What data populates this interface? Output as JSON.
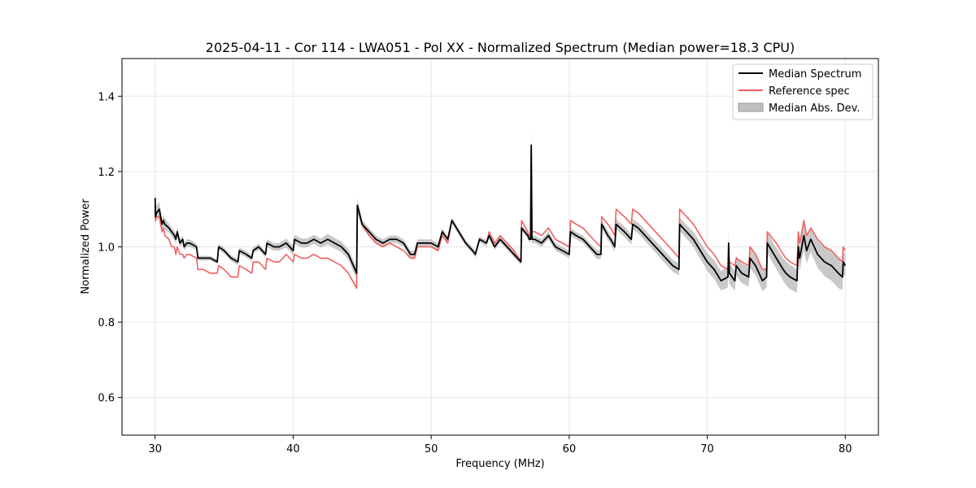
{
  "chart_data": {
    "type": "line",
    "title": "2025-04-11 - Cor 114 - LWA051 - Pol XX - Normalized Spectrum (Median power=18.3 CPU)",
    "xlabel": "Frequency (MHz)",
    "ylabel": "Normalized Power",
    "xlim": [
      27.6,
      82.4
    ],
    "ylim": [
      0.5,
      1.5
    ],
    "xticks": [
      30,
      40,
      50,
      60,
      70,
      80
    ],
    "xtick_labels": [
      "30",
      "40",
      "50",
      "60",
      "70",
      "80"
    ],
    "yticks": [
      0.6,
      0.8,
      1.0,
      1.2,
      1.4
    ],
    "ytick_labels": [
      "0.6",
      "0.8",
      "1.0",
      "1.2",
      "1.4"
    ],
    "grid": true,
    "legend_position": "top-right",
    "legend": [
      {
        "label": "Median Spectrum",
        "kind": "line",
        "color": "#000000"
      },
      {
        "label": "Reference spec",
        "kind": "line",
        "color": "#f06060"
      },
      {
        "label": "Median Abs. Dev.",
        "kind": "band",
        "color": "#bfbfbf"
      }
    ],
    "series": [
      {
        "name": "Median Spectrum",
        "color": "#000000",
        "x": [
          30.0,
          30.02,
          30.1,
          30.3,
          30.5,
          30.6,
          30.7,
          31.0,
          31.2,
          31.4,
          31.5,
          31.6,
          31.8,
          32.0,
          32.1,
          32.3,
          32.5,
          33.0,
          33.1,
          33.5,
          34.0,
          34.5,
          34.6,
          35.0,
          35.5,
          36.0,
          36.1,
          36.6,
          37.0,
          37.1,
          37.5,
          38.0,
          38.1,
          38.6,
          39.0,
          39.5,
          40.0,
          40.1,
          40.6,
          41.0,
          41.5,
          42.0,
          42.5,
          43.0,
          43.5,
          44.0,
          44.6,
          44.65,
          45.0,
          45.5,
          46.0,
          46.5,
          47.0,
          47.5,
          48.0,
          48.5,
          48.8,
          49.0,
          49.5,
          50.0,
          50.5,
          50.8,
          51.2,
          51.5,
          52.0,
          52.5,
          53.0,
          53.2,
          53.5,
          54.0,
          54.2,
          54.6,
          55.0,
          55.5,
          56.0,
          56.5,
          56.55,
          57.0,
          57.1,
          57.2,
          57.25,
          57.3,
          57.5,
          58.0,
          58.5,
          59.0,
          59.5,
          60.0,
          60.1,
          60.5,
          61.0,
          61.5,
          62.0,
          62.3,
          62.35,
          62.8,
          63.0,
          63.3,
          63.4,
          64.0,
          64.5,
          64.6,
          65.0,
          65.5,
          66.0,
          66.5,
          67.0,
          67.5,
          67.95,
          68.0,
          68.5,
          69.0,
          69.5,
          70.0,
          70.5,
          71.0,
          71.5,
          71.55,
          71.6,
          72.0,
          72.1,
          72.5,
          73.0,
          73.1,
          73.5,
          74.0,
          74.3,
          74.35,
          75.0,
          75.5,
          75.7,
          76.0,
          76.5,
          76.6,
          76.7,
          77.0,
          77.2,
          77.5,
          78.0,
          78.5,
          79.0,
          79.5,
          79.8,
          79.85,
          80.0
        ],
        "values": [
          1.13,
          1.08,
          1.09,
          1.1,
          1.06,
          1.07,
          1.06,
          1.05,
          1.04,
          1.03,
          1.02,
          1.04,
          1.01,
          1.02,
          1.0,
          1.01,
          1.01,
          1.0,
          0.97,
          0.97,
          0.97,
          0.96,
          1.0,
          0.99,
          0.97,
          0.96,
          0.99,
          0.98,
          0.97,
          0.99,
          1.0,
          0.98,
          1.01,
          1.0,
          1.0,
          1.01,
          0.99,
          1.02,
          1.01,
          1.01,
          1.02,
          1.01,
          1.02,
          1.01,
          1.0,
          0.98,
          0.93,
          1.11,
          1.06,
          1.04,
          1.02,
          1.01,
          1.02,
          1.02,
          1.01,
          0.98,
          0.98,
          1.01,
          1.01,
          1.01,
          1.0,
          1.04,
          1.02,
          1.07,
          1.04,
          1.01,
          0.99,
          0.98,
          1.02,
          1.01,
          1.03,
          1.0,
          1.02,
          1.0,
          0.98,
          0.96,
          1.05,
          1.03,
          1.02,
          1.02,
          1.27,
          1.02,
          1.02,
          1.01,
          1.03,
          1.0,
          0.99,
          0.98,
          1.04,
          1.03,
          1.02,
          1.0,
          0.98,
          0.98,
          1.06,
          1.03,
          1.02,
          1.0,
          1.06,
          1.04,
          1.02,
          1.06,
          1.05,
          1.03,
          1.01,
          0.99,
          0.97,
          0.95,
          0.94,
          1.06,
          1.04,
          1.02,
          0.99,
          0.96,
          0.94,
          0.91,
          0.92,
          1.01,
          0.93,
          0.91,
          0.95,
          0.93,
          0.92,
          0.97,
          0.95,
          0.91,
          0.92,
          1.01,
          0.97,
          0.94,
          0.93,
          0.92,
          0.91,
          1.0,
          0.97,
          1.03,
          0.99,
          1.02,
          0.98,
          0.96,
          0.95,
          0.93,
          0.92,
          0.96,
          0.95
        ]
      },
      {
        "name": "Reference spec",
        "color": "#f06060",
        "x": [
          30.0,
          30.02,
          30.1,
          30.3,
          30.5,
          30.6,
          30.7,
          31.0,
          31.2,
          31.4,
          31.5,
          31.6,
          31.8,
          32.0,
          32.1,
          32.3,
          32.5,
          33.0,
          33.1,
          33.5,
          34.0,
          34.5,
          34.6,
          35.0,
          35.5,
          36.0,
          36.1,
          36.6,
          37.0,
          37.1,
          37.5,
          38.0,
          38.1,
          38.6,
          39.0,
          39.5,
          40.0,
          40.1,
          40.6,
          41.0,
          41.5,
          42.0,
          42.5,
          43.0,
          43.5,
          44.0,
          44.6,
          44.65,
          45.0,
          45.5,
          46.0,
          46.5,
          47.0,
          47.5,
          48.0,
          48.5,
          48.8,
          49.0,
          49.5,
          50.0,
          50.5,
          50.8,
          51.2,
          51.5,
          52.0,
          52.5,
          53.0,
          53.2,
          53.5,
          54.0,
          54.2,
          54.6,
          55.0,
          55.5,
          56.0,
          56.5,
          56.55,
          57.0,
          57.1,
          57.2,
          57.25,
          57.3,
          57.5,
          58.0,
          58.5,
          59.0,
          59.5,
          60.0,
          60.1,
          60.5,
          61.0,
          61.5,
          62.0,
          62.3,
          62.35,
          62.8,
          63.0,
          63.3,
          63.4,
          64.0,
          64.5,
          64.6,
          65.0,
          65.5,
          66.0,
          66.5,
          67.0,
          67.5,
          67.95,
          68.0,
          68.5,
          69.0,
          69.5,
          70.0,
          70.5,
          71.0,
          71.5,
          71.55,
          71.6,
          72.0,
          72.1,
          72.5,
          73.0,
          73.1,
          73.5,
          74.0,
          74.3,
          74.35,
          75.0,
          75.5,
          75.7,
          76.0,
          76.5,
          76.6,
          76.7,
          77.0,
          77.2,
          77.5,
          78.0,
          78.5,
          79.0,
          79.5,
          79.8,
          79.85,
          80.0
        ],
        "values": [
          1.12,
          1.07,
          1.08,
          1.08,
          1.04,
          1.05,
          1.03,
          1.02,
          1.0,
          1.0,
          0.98,
          1.0,
          0.98,
          0.98,
          0.97,
          0.98,
          0.98,
          0.97,
          0.94,
          0.94,
          0.93,
          0.93,
          0.95,
          0.94,
          0.92,
          0.92,
          0.95,
          0.94,
          0.93,
          0.96,
          0.96,
          0.94,
          0.97,
          0.96,
          0.96,
          0.98,
          0.96,
          0.98,
          0.97,
          0.97,
          0.98,
          0.97,
          0.97,
          0.96,
          0.95,
          0.93,
          0.89,
          1.11,
          1.06,
          1.03,
          1.01,
          1.0,
          1.01,
          1.0,
          0.99,
          0.97,
          0.97,
          1.0,
          1.0,
          1.0,
          0.99,
          1.03,
          1.01,
          1.07,
          1.04,
          1.01,
          0.99,
          0.98,
          1.02,
          1.01,
          1.04,
          1.01,
          1.03,
          1.01,
          0.99,
          0.96,
          1.07,
          1.04,
          1.03,
          1.03,
          1.26,
          1.04,
          1.04,
          1.03,
          1.05,
          1.02,
          1.01,
          1.0,
          1.07,
          1.06,
          1.05,
          1.03,
          1.01,
          1.0,
          1.08,
          1.06,
          1.05,
          1.03,
          1.1,
          1.08,
          1.06,
          1.1,
          1.09,
          1.07,
          1.05,
          1.03,
          1.01,
          0.99,
          0.97,
          1.1,
          1.08,
          1.06,
          1.03,
          1.0,
          0.98,
          0.95,
          0.94,
          1.0,
          0.96,
          0.95,
          0.97,
          0.96,
          0.95,
          1.0,
          0.98,
          0.94,
          0.94,
          1.04,
          1.01,
          0.98,
          0.97,
          0.96,
          0.95,
          1.04,
          1.01,
          1.07,
          1.03,
          1.05,
          1.02,
          1.0,
          0.99,
          0.97,
          0.96,
          1.0,
          0.99
        ]
      }
    ],
    "band": {
      "name": "Median Abs. Dev.",
      "color": "#bfbfbf",
      "deviation": [
        0.02,
        0.02,
        0.02,
        0.02,
        0.015,
        0.015,
        0.015,
        0.012,
        0.012,
        0.012,
        0.012,
        0.012,
        0.01,
        0.01,
        0.01,
        0.01,
        0.01,
        0.008,
        0.006,
        0.006,
        0.006,
        0.006,
        0.008,
        0.008,
        0.008,
        0.008,
        0.008,
        0.008,
        0.008,
        0.008,
        0.008,
        0.008,
        0.01,
        0.01,
        0.01,
        0.012,
        0.012,
        0.012,
        0.012,
        0.012,
        0.012,
        0.012,
        0.014,
        0.014,
        0.014,
        0.014,
        0.016,
        0.02,
        0.012,
        0.01,
        0.01,
        0.01,
        0.01,
        0.01,
        0.01,
        0.01,
        0.01,
        0.01,
        0.01,
        0.01,
        0.01,
        0.01,
        0.008,
        0.008,
        0.008,
        0.008,
        0.008,
        0.008,
        0.008,
        0.008,
        0.008,
        0.008,
        0.008,
        0.008,
        0.008,
        0.008,
        0.008,
        0.008,
        0.008,
        0.008,
        0.045,
        0.01,
        0.01,
        0.01,
        0.01,
        0.01,
        0.01,
        0.01,
        0.01,
        0.01,
        0.01,
        0.01,
        0.012,
        0.012,
        0.012,
        0.012,
        0.012,
        0.012,
        0.014,
        0.014,
        0.014,
        0.014,
        0.014,
        0.015,
        0.015,
        0.016,
        0.016,
        0.016,
        0.016,
        0.018,
        0.018,
        0.02,
        0.022,
        0.024,
        0.025,
        0.026,
        0.028,
        0.03,
        0.028,
        0.026,
        0.026,
        0.026,
        0.026,
        0.026,
        0.026,
        0.028,
        0.028,
        0.028,
        0.028,
        0.03,
        0.032,
        0.032,
        0.032,
        0.032,
        0.034,
        0.036,
        0.034,
        0.034,
        0.036,
        0.038,
        0.04,
        0.04,
        0.034,
        0.032,
        0.03
      ]
    }
  }
}
